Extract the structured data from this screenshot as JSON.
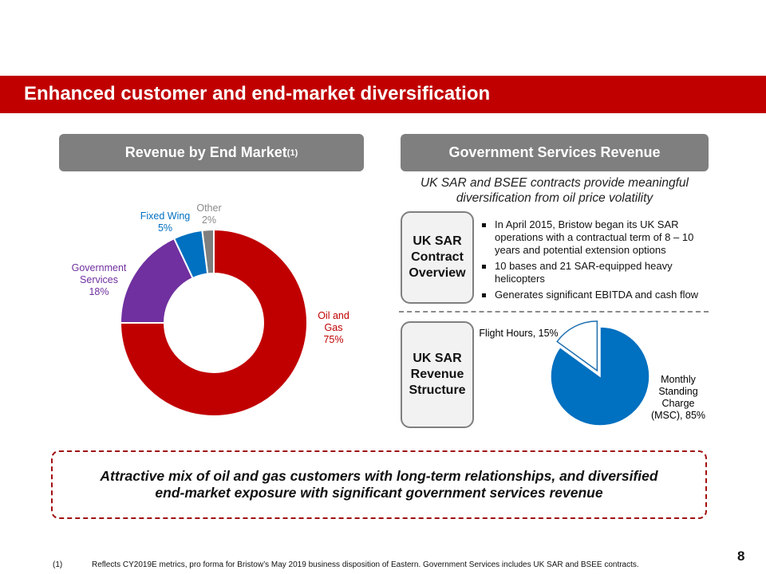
{
  "title": "Enhanced customer and end-market diversification",
  "left_header": {
    "text": "Revenue by End Market",
    "sup": "(1)"
  },
  "right_header": "Government Services Revenue",
  "subtitle": "UK SAR and BSEE contracts provide meaningful diversification from oil price volatility",
  "contract_box": "UK SAR Contract Overview",
  "bullets": [
    "In April 2015, Bristow began its UK SAR operations with a contractual term of 8 – 10 years and potential extension options",
    "10 bases and 21 SAR-equipped heavy helicopters",
    "Generates significant EBITDA and cash flow"
  ],
  "revenue_box": "UK SAR Revenue Structure",
  "callout": "Attractive mix of oil and gas customers with long-term relationships, and diversified end-market exposure with significant government services revenue",
  "footnote": {
    "marker": "(1)",
    "text": "Reflects CY2019E metrics, pro forma for Bristow’s May 2019 business disposition of Eastern. Government Services includes UK SAR and BSEE contracts."
  },
  "page_number": "8",
  "colors": {
    "brand_red": "#C00000",
    "gray": "#7F7F7F",
    "purple": "#7030A0",
    "blue": "#0070C0"
  },
  "chart_data": [
    {
      "type": "pie",
      "subtype": "donut",
      "title": "Revenue by End Market",
      "slices": [
        {
          "name": "Oil and Gas",
          "value": 75,
          "label1": "Oil and",
          "label2": "Gas",
          "pct": "75%",
          "color": "#C00000"
        },
        {
          "name": "Government Services",
          "value": 18,
          "label1": "Government",
          "label2": "Services",
          "pct": "18%",
          "color": "#7030A0"
        },
        {
          "name": "Fixed Wing",
          "value": 5,
          "label1": "Fixed Wing",
          "label2": "",
          "pct": "5%",
          "color": "#0070C0"
        },
        {
          "name": "Other",
          "value": 2,
          "label1": "Other",
          "label2": "",
          "pct": "2%",
          "color": "#7F7F7F"
        }
      ]
    },
    {
      "type": "pie",
      "title": "UK SAR Revenue Structure",
      "slices": [
        {
          "name": "Monthly Standing Charge (MSC)",
          "value": 85,
          "label": "Monthly Standing Charge (MSC), 85%",
          "color": "#0070C0"
        },
        {
          "name": "Flight Hours",
          "value": 15,
          "label": "Flight Hours, 15%",
          "color": "#FFFFFF",
          "exploded": true
        }
      ]
    }
  ]
}
